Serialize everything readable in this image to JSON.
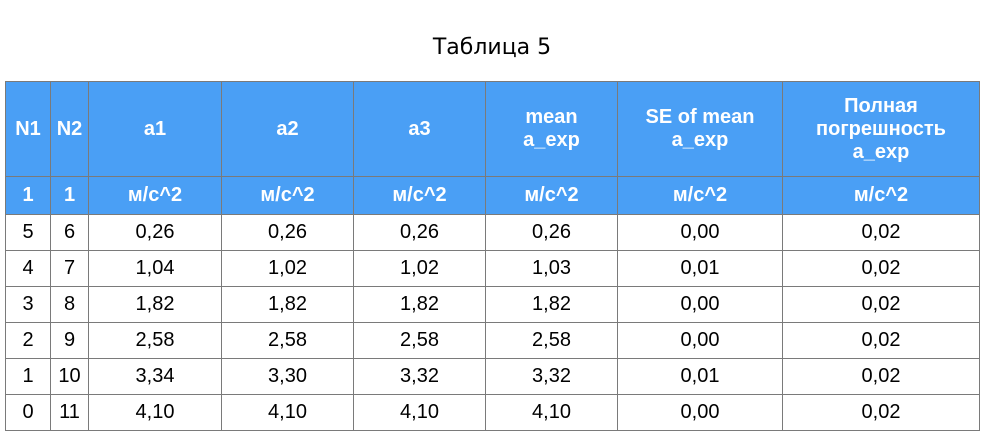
{
  "caption": "Таблица 5",
  "colors": {
    "header_bg": "#4a9ff5",
    "header_text": "#ffffff",
    "grid": "#7a7a7a"
  },
  "table": {
    "headers": [
      "N1",
      "N2",
      "a1",
      "a2",
      "a3",
      "mean\na_exp",
      "SE of mean\na_exp",
      "Полная\nпогрешность\na_exp"
    ],
    "units": [
      "1",
      "1",
      "м/с^2",
      "м/с^2",
      "м/с^2",
      "м/с^2",
      "м/с^2",
      "м/с^2"
    ],
    "rows": [
      [
        "5",
        "6",
        "0,26",
        "0,26",
        "0,26",
        "0,26",
        "0,00",
        "0,02"
      ],
      [
        "4",
        "7",
        "1,04",
        "1,02",
        "1,02",
        "1,03",
        "0,01",
        "0,02"
      ],
      [
        "3",
        "8",
        "1,82",
        "1,82",
        "1,82",
        "1,82",
        "0,00",
        "0,02"
      ],
      [
        "2",
        "9",
        "2,58",
        "2,58",
        "2,58",
        "2,58",
        "0,00",
        "0,02"
      ],
      [
        "1",
        "10",
        "3,34",
        "3,30",
        "3,32",
        "3,32",
        "0,01",
        "0,02"
      ],
      [
        "0",
        "11",
        "4,10",
        "4,10",
        "4,10",
        "4,10",
        "0,00",
        "0,02"
      ]
    ]
  }
}
